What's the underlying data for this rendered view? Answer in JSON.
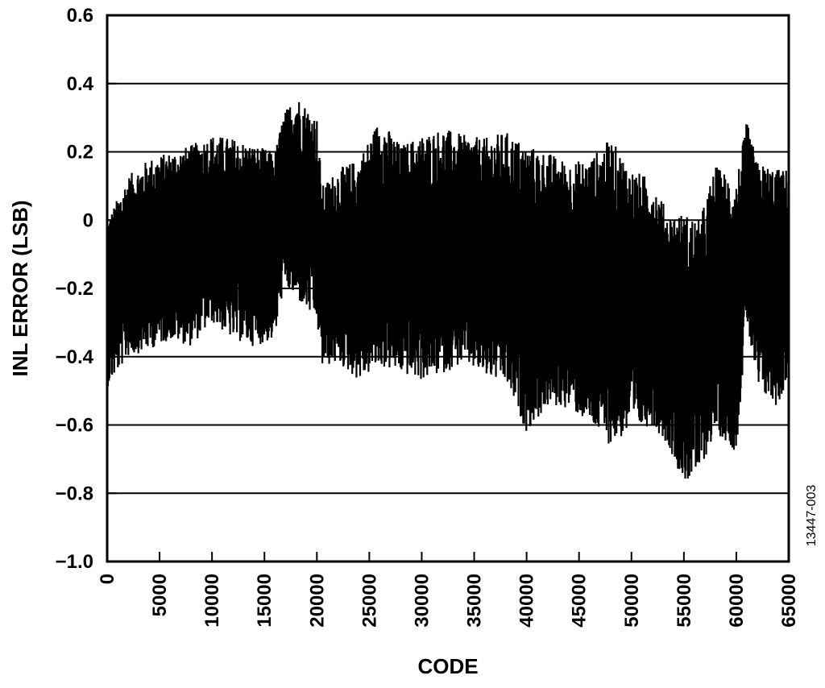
{
  "chart_data": {
    "type": "line",
    "title": "",
    "xlabel": "CODE",
    "ylabel": "INL ERROR (LSB)",
    "xlim": [
      0,
      65000
    ],
    "ylim": [
      -1.0,
      0.6
    ],
    "x_ticks": [
      0,
      5000,
      10000,
      15000,
      20000,
      25000,
      30000,
      35000,
      40000,
      45000,
      50000,
      55000,
      60000,
      65000
    ],
    "x_tick_labels": [
      "0",
      "5000",
      "10000",
      "15000",
      "20000",
      "25000",
      "30000",
      "35000",
      "40000",
      "45000",
      "50000",
      "55000",
      "60000",
      "65000"
    ],
    "y_ticks": [
      -1.0,
      -0.8,
      -0.6,
      -0.4,
      -0.2,
      0,
      0.2,
      0.4,
      0.6
    ],
    "y_tick_labels": [
      "−1.0",
      "−0.8",
      "−0.6",
      "−0.4",
      "−0.2",
      "0",
      "0.2",
      "0.4",
      "0.6"
    ],
    "grid": "horizontal",
    "figure_id": "13447-003",
    "series": [
      {
        "color": "#000000",
        "x": [
          0,
          2000,
          4000,
          6000,
          8000,
          10000,
          12000,
          14000,
          16000,
          16800,
          18000,
          20000,
          20500,
          22000,
          24000,
          26000,
          28000,
          30000,
          32000,
          34000,
          36000,
          38000,
          40000,
          42000,
          44000,
          46000,
          48000,
          50000,
          52000,
          53500,
          55000,
          56500,
          58000,
          60000,
          61000,
          62000,
          64000,
          65000
        ],
        "y_max": [
          0.0,
          0.13,
          0.18,
          0.2,
          0.22,
          0.25,
          0.24,
          0.22,
          0.2,
          0.31,
          0.37,
          0.3,
          0.1,
          0.15,
          0.18,
          0.3,
          0.22,
          0.25,
          0.27,
          0.25,
          0.24,
          0.26,
          0.22,
          0.2,
          0.17,
          0.18,
          0.24,
          0.15,
          0.12,
          0.02,
          0.02,
          0.0,
          0.16,
          0.12,
          0.29,
          0.17,
          0.15,
          0.15
        ],
        "y_min": [
          -0.49,
          -0.4,
          -0.38,
          -0.35,
          -0.37,
          -0.3,
          -0.35,
          -0.37,
          -0.35,
          -0.2,
          -0.23,
          -0.3,
          -0.43,
          -0.42,
          -0.47,
          -0.43,
          -0.45,
          -0.47,
          -0.45,
          -0.42,
          -0.46,
          -0.48,
          -0.62,
          -0.55,
          -0.55,
          -0.6,
          -0.66,
          -0.62,
          -0.6,
          -0.66,
          -0.77,
          -0.74,
          -0.62,
          -0.68,
          -0.3,
          -0.5,
          -0.55,
          -0.45
        ]
      }
    ]
  }
}
